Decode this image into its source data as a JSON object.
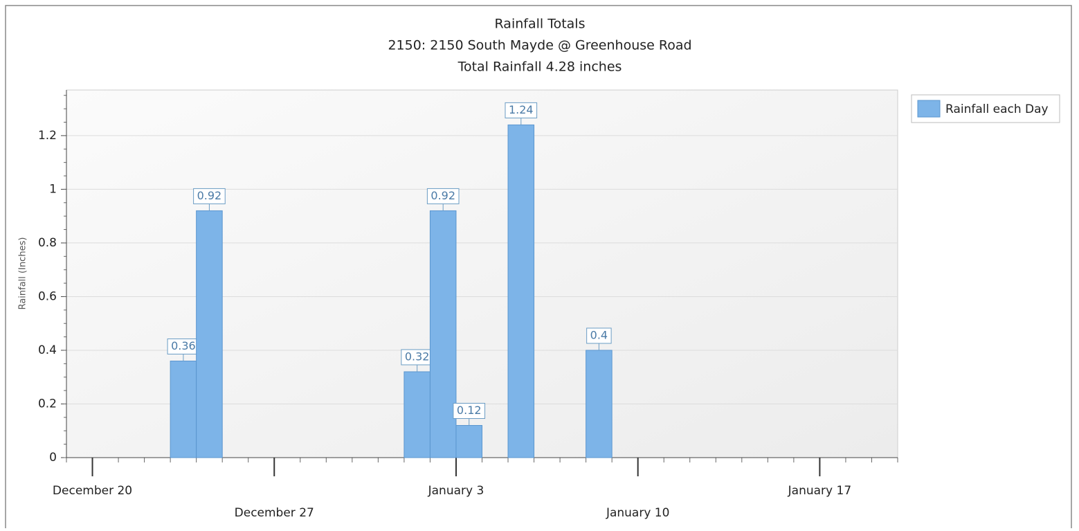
{
  "chart_data": {
    "type": "bar",
    "title": "Rainfall Totals",
    "subtitle": "2150: 2150 South Mayde @ Greenhouse Road",
    "annotation": "Total Rainfall 4.28 inches",
    "y_label": "Rainfall (Inches)",
    "x": [
      "December 23",
      "December 24",
      "January 1",
      "January 2",
      "January 3",
      "January 5",
      "January 8"
    ],
    "series": [
      {
        "name": "Rainfall each Day",
        "color": "#7db4e8",
        "values": [
          0.36,
          0.92,
          0.32,
          0.92,
          0.12,
          1.24,
          0.4
        ]
      }
    ],
    "xlim": [
      "December 19",
      "January 20"
    ],
    "xticks": [
      "December 20",
      "December 27",
      "January 3",
      "January 10",
      "January 17"
    ],
    "ylim": [
      0,
      1.37
    ],
    "yticks": [
      0,
      0.2,
      0.4,
      0.6,
      0.8,
      1,
      1.2
    ],
    "grid": true,
    "legend": "right"
  }
}
